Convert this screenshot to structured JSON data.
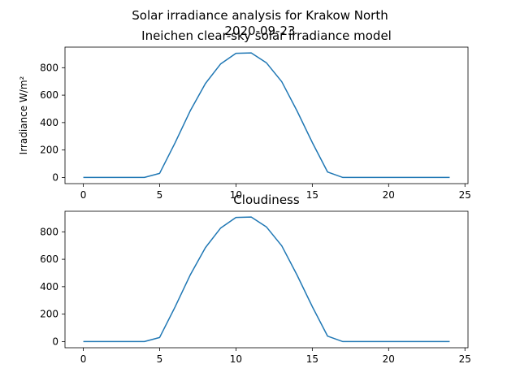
{
  "figure": {
    "suptitle_line1": "Solar irradiance analysis for Krakow North",
    "suptitle_line2": "2020-09-23"
  },
  "colors": {
    "series": "#1f77b4"
  },
  "chart_data": [
    {
      "type": "line",
      "title": "Ineichen clear-sky solar irradiance model",
      "ylabel": "Irradiance W/m²",
      "xlabel": "",
      "xlim": [
        -1.2,
        25.2
      ],
      "ylim": [
        -45,
        950
      ],
      "xticks": [
        0,
        5,
        10,
        15,
        20,
        25
      ],
      "yticks": [
        0,
        200,
        400,
        600,
        800
      ],
      "grid": false,
      "x": [
        0,
        1,
        2,
        3,
        4,
        5,
        6,
        7,
        8,
        9,
        10,
        11,
        12,
        13,
        14,
        15,
        16,
        17,
        18,
        19,
        20,
        21,
        22,
        23,
        24
      ],
      "series": [
        {
          "values": [
            0,
            0,
            0,
            0,
            0,
            30,
            250,
            485,
            685,
            828,
            905,
            908,
            835,
            698,
            485,
            255,
            40,
            0,
            0,
            0,
            0,
            0,
            0,
            0,
            0
          ]
        }
      ]
    },
    {
      "type": "line",
      "title": "Cloudiness",
      "ylabel": "",
      "xlabel": "",
      "xlim": [
        -1.2,
        25.2
      ],
      "ylim": [
        -45,
        950
      ],
      "xticks": [
        0,
        5,
        10,
        15,
        20,
        25
      ],
      "yticks": [
        0,
        200,
        400,
        600,
        800
      ],
      "grid": false,
      "x": [
        0,
        1,
        2,
        3,
        4,
        5,
        6,
        7,
        8,
        9,
        10,
        11,
        12,
        13,
        14,
        15,
        16,
        17,
        18,
        19,
        20,
        21,
        22,
        23,
        24
      ],
      "series": [
        {
          "values": [
            0,
            0,
            0,
            0,
            0,
            30,
            250,
            485,
            685,
            828,
            905,
            908,
            835,
            698,
            485,
            255,
            40,
            0,
            0,
            0,
            0,
            0,
            0,
            0,
            0
          ]
        }
      ]
    }
  ]
}
